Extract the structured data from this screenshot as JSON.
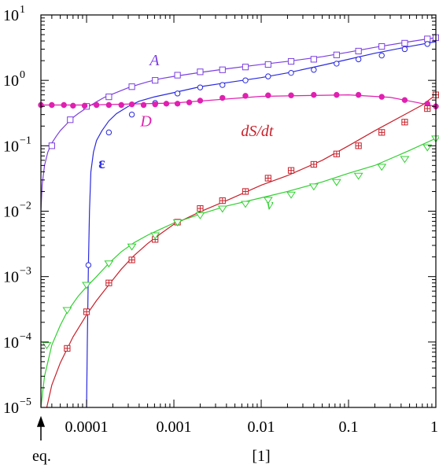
{
  "chart_data": {
    "type": "line",
    "xlabel": "[1]",
    "x_scale": "log",
    "y_scale": "log",
    "xlim": [
      3e-05,
      1
    ],
    "ylim": [
      1e-05,
      10
    ],
    "grid": false,
    "legend": "none",
    "x_ticks": [
      {
        "value": 0.0001,
        "label": "0.0001"
      },
      {
        "value": 0.001,
        "label": "0.001"
      },
      {
        "value": 0.01,
        "label": "0.01"
      },
      {
        "value": 0.1,
        "label": "0.1"
      },
      {
        "value": 1,
        "label": "1"
      }
    ],
    "y_ticks": [
      {
        "value": 1e-05,
        "base": "10",
        "exp": "−5"
      },
      {
        "value": 0.0001,
        "base": "10",
        "exp": "−4"
      },
      {
        "value": 0.001,
        "base": "10",
        "exp": "−3"
      },
      {
        "value": 0.01,
        "base": "10",
        "exp": "−2"
      },
      {
        "value": 0.1,
        "base": "10",
        "exp": "−1"
      },
      {
        "value": 1,
        "base": "10",
        "exp": "0"
      },
      {
        "value": 10,
        "base": "10",
        "exp": "1"
      }
    ],
    "annotation": {
      "text": "eq.",
      "x": 3e-05
    },
    "series": [
      {
        "name": "A",
        "color": "#7b3fe0",
        "marker": "square",
        "label_at": {
          "x": 0.0006,
          "y": 1.7
        },
        "curve": [
          [
            3e-05,
            0.01
          ],
          [
            3.1e-05,
            0.025
          ],
          [
            3.3e-05,
            0.05
          ],
          [
            3.6e-05,
            0.08
          ],
          [
            4e-05,
            0.11
          ],
          [
            4.5e-05,
            0.14
          ],
          [
            5e-05,
            0.17
          ],
          [
            6e-05,
            0.22
          ],
          [
            7e-05,
            0.27
          ],
          [
            8e-05,
            0.31
          ],
          [
            0.0001,
            0.38
          ],
          [
            0.00013,
            0.47
          ],
          [
            0.00016,
            0.55
          ],
          [
            0.0002,
            0.62
          ],
          [
            0.00025,
            0.7
          ],
          [
            0.0003,
            0.77
          ],
          [
            0.0004,
            0.87
          ],
          [
            0.0005,
            0.95
          ],
          [
            0.0007,
            1.06
          ],
          [
            0.001,
            1.15
          ],
          [
            0.002,
            1.32
          ],
          [
            0.004,
            1.5
          ],
          [
            0.01,
            1.75
          ],
          [
            0.02,
            1.95
          ],
          [
            0.05,
            2.3
          ],
          [
            0.1,
            2.7
          ],
          [
            0.2,
            3.2
          ],
          [
            0.5,
            3.9
          ],
          [
            1,
            4.5
          ]
        ],
        "points": [
          [
            4e-05,
            0.1
          ],
          [
            6.5e-05,
            0.25
          ],
          [
            0.0001,
            0.4
          ],
          [
            0.00018,
            0.56
          ],
          [
            0.00033,
            0.8
          ],
          [
            0.00061,
            1
          ],
          [
            0.0011,
            1.2
          ],
          [
            0.002,
            1.35
          ],
          [
            0.0036,
            1.45
          ],
          [
            0.0066,
            1.6
          ],
          [
            0.012,
            1.75
          ],
          [
            0.022,
            1.95
          ],
          [
            0.04,
            2.1
          ],
          [
            0.073,
            2.45
          ],
          [
            0.13,
            2.8
          ],
          [
            0.24,
            3.3
          ],
          [
            0.44,
            3.7
          ],
          [
            0.8,
            4.3
          ],
          [
            1,
            4.5
          ]
        ]
      },
      {
        "name": "ε",
        "color": "#2a2adf",
        "marker": "circle",
        "label_at": {
          "x": 0.00015,
          "y": 0.045
        },
        "curve": [
          [
            0.0001,
            1e-05
          ],
          [
            0.000102,
            0.0001
          ],
          [
            0.000105,
            0.0015
          ],
          [
            0.000108,
            0.01
          ],
          [
            0.000112,
            0.04
          ],
          [
            0.00012,
            0.08
          ],
          [
            0.00013,
            0.12
          ],
          [
            0.00015,
            0.17
          ],
          [
            0.00018,
            0.24
          ],
          [
            0.00022,
            0.31
          ],
          [
            0.0003,
            0.4
          ],
          [
            0.0004,
            0.48
          ],
          [
            0.0006,
            0.56
          ],
          [
            0.001,
            0.65
          ],
          [
            0.002,
            0.8
          ],
          [
            0.004,
            0.92
          ],
          [
            0.01,
            1.1
          ],
          [
            0.02,
            1.3
          ],
          [
            0.05,
            1.7
          ],
          [
            0.1,
            2.1
          ],
          [
            0.2,
            2.6
          ],
          [
            0.5,
            3.3
          ],
          [
            1,
            3.9
          ]
        ],
        "points": [
          [
            0.000105,
            0.0015
          ],
          [
            0.00018,
            0.16
          ],
          [
            0.00033,
            0.3
          ],
          [
            0.00061,
            0.45
          ],
          [
            0.0011,
            0.63
          ],
          [
            0.002,
            0.78
          ],
          [
            0.0036,
            0.85
          ],
          [
            0.0066,
            1
          ],
          [
            0.012,
            1.15
          ],
          [
            0.022,
            1.3
          ],
          [
            0.04,
            1.45
          ],
          [
            0.073,
            1.8
          ],
          [
            0.13,
            2.1
          ],
          [
            0.24,
            2.4
          ],
          [
            0.44,
            3
          ],
          [
            0.8,
            3.6
          ]
        ]
      },
      {
        "name": "D",
        "color": "#e020b0",
        "marker": "filled-circle",
        "label_at": {
          "x": 0.00048,
          "y": 0.2
        },
        "curve": [
          [
            3e-05,
            0.42
          ],
          [
            0.0001,
            0.42
          ],
          [
            0.001,
            0.45
          ],
          [
            0.01,
            0.57
          ],
          [
            0.1,
            0.6
          ],
          [
            0.3,
            0.55
          ],
          [
            0.6,
            0.46
          ],
          [
            1,
            0.4
          ]
        ],
        "points": [
          [
            3e-05,
            0.42
          ],
          [
            4e-05,
            0.42
          ],
          [
            5.5e-05,
            0.42
          ],
          [
            7e-05,
            0.41
          ],
          [
            9.5e-05,
            0.41
          ],
          [
            0.00013,
            0.42
          ],
          [
            0.00018,
            0.42
          ],
          [
            0.00025,
            0.42
          ],
          [
            0.00033,
            0.43
          ],
          [
            0.00045,
            0.42
          ],
          [
            0.00061,
            0.43
          ],
          [
            0.00082,
            0.44
          ],
          [
            0.0011,
            0.44
          ],
          [
            0.0015,
            0.46
          ],
          [
            0.002,
            0.49
          ],
          [
            0.0036,
            0.54
          ],
          [
            0.0066,
            0.58
          ],
          [
            0.012,
            0.59
          ],
          [
            0.022,
            0.59
          ],
          [
            0.04,
            0.6
          ],
          [
            0.073,
            0.6
          ],
          [
            0.13,
            0.6
          ],
          [
            0.24,
            0.56
          ],
          [
            0.44,
            0.5
          ],
          [
            0.8,
            0.44
          ],
          [
            1,
            0.4
          ]
        ]
      },
      {
        "name": "dS/dt",
        "color": "#c8202a",
        "marker": "boxed-plus",
        "label_at": {
          "x": 0.009,
          "y": 0.14
        },
        "curve": [
          [
            3e-05,
            4e-06
          ],
          [
            4e-05,
            2.2e-05
          ],
          [
            5e-05,
            4.8e-05
          ],
          [
            7e-05,
            0.00012
          ],
          [
            0.0001,
            0.00026
          ],
          [
            0.00013,
            0.00043
          ],
          [
            0.00018,
            0.00075
          ],
          [
            0.00025,
            0.0013
          ],
          [
            0.00035,
            0.0021
          ],
          [
            0.0005,
            0.0032
          ],
          [
            0.0007,
            0.0045
          ],
          [
            0.001,
            0.0063
          ],
          [
            0.002,
            0.0098
          ],
          [
            0.004,
            0.0145
          ],
          [
            0.01,
            0.025
          ],
          [
            0.02,
            0.035
          ],
          [
            0.05,
            0.06
          ],
          [
            0.1,
            0.1
          ],
          [
            0.2,
            0.17
          ],
          [
            0.4,
            0.28
          ],
          [
            0.7,
            0.42
          ],
          [
            1,
            0.6
          ]
        ],
        "points": [
          [
            6e-05,
            8e-05
          ],
          [
            0.0001,
            0.00029
          ],
          [
            0.00018,
            0.0008
          ],
          [
            0.00033,
            0.0018
          ],
          [
            0.00061,
            0.0037
          ],
          [
            0.0011,
            0.0068
          ],
          [
            0.002,
            0.011
          ],
          [
            0.0036,
            0.0145
          ],
          [
            0.0066,
            0.02
          ],
          [
            0.012,
            0.032
          ],
          [
            0.022,
            0.042
          ],
          [
            0.04,
            0.052
          ],
          [
            0.073,
            0.075
          ],
          [
            0.13,
            0.1
          ],
          [
            0.24,
            0.16
          ],
          [
            0.44,
            0.23
          ],
          [
            0.8,
            0.37
          ],
          [
            1,
            0.6
          ]
        ]
      },
      {
        "name": "v",
        "color": "#30d030",
        "marker": "triangle-down",
        "label_at": {
          "x": 0.0125,
          "y": 0.0105
        },
        "curve": [
          [
            3e-05,
            1e-05
          ],
          [
            3.3e-05,
            3e-05
          ],
          [
            4e-05,
            9e-05
          ],
          [
            5e-05,
            0.00018
          ],
          [
            6e-05,
            0.00029
          ],
          [
            8e-05,
            0.0005
          ],
          [
            0.0001,
            0.0007
          ],
          [
            0.00013,
            0.001
          ],
          [
            0.00018,
            0.0016
          ],
          [
            0.00025,
            0.0024
          ],
          [
            0.00035,
            0.0033
          ],
          [
            0.0005,
            0.0043
          ],
          [
            0.0007,
            0.0053
          ],
          [
            0.001,
            0.0066
          ],
          [
            0.002,
            0.009
          ],
          [
            0.004,
            0.012
          ],
          [
            0.01,
            0.016
          ],
          [
            0.02,
            0.02
          ],
          [
            0.05,
            0.028
          ],
          [
            0.1,
            0.038
          ],
          [
            0.2,
            0.05
          ],
          [
            0.5,
            0.085
          ],
          [
            1,
            0.13
          ]
        ],
        "points": [
          [
            3.5e-05,
            9e-05
          ],
          [
            6e-05,
            0.00031
          ],
          [
            0.0001,
            0.00075
          ],
          [
            0.00018,
            0.0016
          ],
          [
            0.00033,
            0.0029
          ],
          [
            0.00061,
            0.0043
          ],
          [
            0.0011,
            0.0068
          ],
          [
            0.002,
            0.0087
          ],
          [
            0.0036,
            0.011
          ],
          [
            0.0066,
            0.013
          ],
          [
            0.012,
            0.015
          ],
          [
            0.022,
            0.018
          ],
          [
            0.04,
            0.024
          ],
          [
            0.073,
            0.028
          ],
          [
            0.13,
            0.035
          ],
          [
            0.24,
            0.048
          ],
          [
            0.44,
            0.063
          ],
          [
            0.8,
            0.095
          ],
          [
            1,
            0.13
          ]
        ]
      }
    ]
  }
}
